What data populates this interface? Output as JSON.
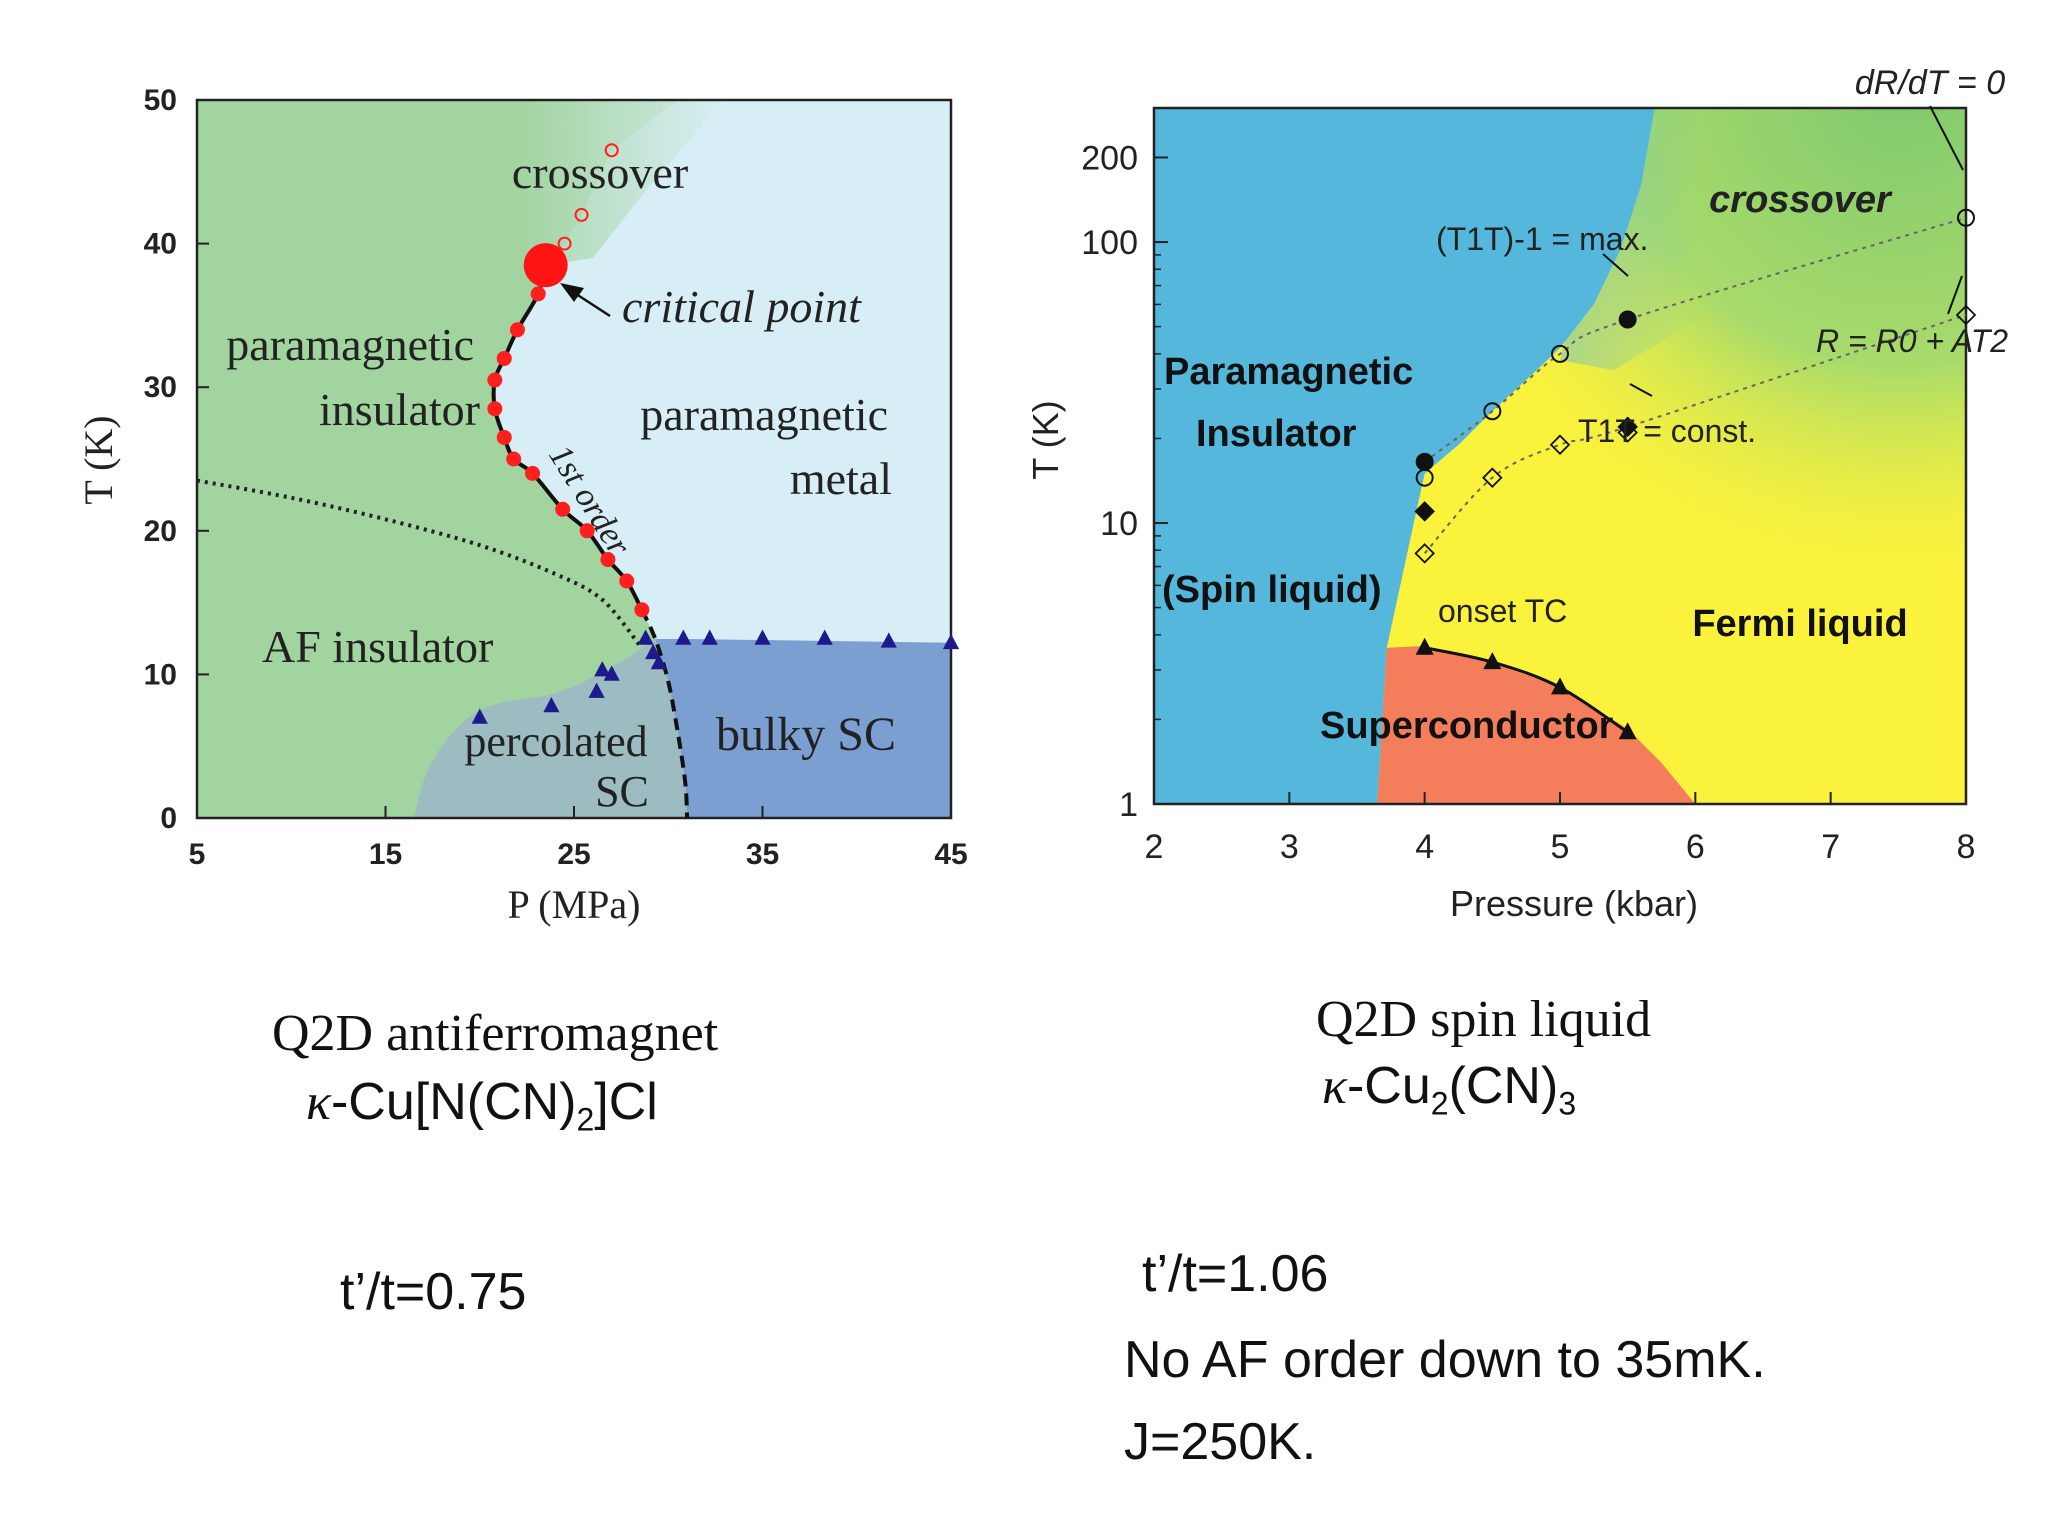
{
  "chart_data": [
    {
      "type": "scatter",
      "title": "",
      "xlabel": "P (MPa)",
      "ylabel": "T (K)",
      "xlim": [
        5,
        45
      ],
      "ylim": [
        0,
        50
      ],
      "xticks": [
        "5",
        "15",
        "25",
        "35",
        "45"
      ],
      "yticks": [
        "0",
        "10",
        "20",
        "30",
        "40",
        "50"
      ],
      "regions": {
        "crossover": "crossover",
        "paramagnetic_insulator_1": "paramagnetic",
        "paramagnetic_insulator_2": "insulator",
        "paramagnetic_metal_1": "paramagnetic",
        "paramagnetic_metal_2": "metal",
        "af_insulator": "AF insulator",
        "percolated_sc_1": "percolated",
        "percolated_sc_2": "SC",
        "bulky_sc": "bulky SC"
      },
      "annotations": {
        "critical_point": "critical point",
        "first_order": "1st order"
      },
      "colors": {
        "insulator": "#a2d4a0",
        "metal": "#d8eef6",
        "percolated": "#9cbcc2",
        "bulky": "#7b9fd0",
        "points": "#ff1f1f",
        "triangles": "#1c1a8c"
      },
      "critical_point": {
        "x": 23.5,
        "y": 38.5
      },
      "first_order_points": [
        {
          "x": 23.1,
          "y": 36.5
        },
        {
          "x": 22.0,
          "y": 34.0
        },
        {
          "x": 21.3,
          "y": 32.0
        },
        {
          "x": 20.8,
          "y": 30.5
        },
        {
          "x": 20.8,
          "y": 28.5
        },
        {
          "x": 21.3,
          "y": 26.5
        },
        {
          "x": 21.8,
          "y": 25.0
        },
        {
          "x": 22.8,
          "y": 24.0
        },
        {
          "x": 24.4,
          "y": 21.5
        },
        {
          "x": 25.7,
          "y": 20.0
        },
        {
          "x": 26.8,
          "y": 18.0
        },
        {
          "x": 27.8,
          "y": 16.5
        },
        {
          "x": 28.6,
          "y": 14.5
        }
      ],
      "crossover_points": [
        {
          "x": 27.0,
          "y": 46.5
        },
        {
          "x": 25.4,
          "y": 42.0
        },
        {
          "x": 24.5,
          "y": 40.0
        }
      ],
      "sc_onset_triangles": [
        {
          "x": 20.0,
          "y": 7.0
        },
        {
          "x": 23.8,
          "y": 7.8
        },
        {
          "x": 26.2,
          "y": 8.8
        },
        {
          "x": 26.5,
          "y": 10.3
        },
        {
          "x": 27.0,
          "y": 10.0
        },
        {
          "x": 28.8,
          "y": 12.5
        },
        {
          "x": 29.2,
          "y": 11.5
        },
        {
          "x": 29.5,
          "y": 10.8
        },
        {
          "x": 30.8,
          "y": 12.5
        },
        {
          "x": 32.2,
          "y": 12.5
        },
        {
          "x": 35.0,
          "y": 12.5
        },
        {
          "x": 38.3,
          "y": 12.5
        },
        {
          "x": 41.7,
          "y": 12.3
        },
        {
          "x": 45.0,
          "y": 12.2
        }
      ],
      "af_boundary": [
        {
          "x": 5,
          "y": 23.5
        },
        {
          "x": 10,
          "y": 22.3
        },
        {
          "x": 15,
          "y": 20.8
        },
        {
          "x": 20,
          "y": 19.0
        },
        {
          "x": 24,
          "y": 17.0
        },
        {
          "x": 26.5,
          "y": 15.2
        },
        {
          "x": 28.5,
          "y": 12.0
        }
      ],
      "sc_boundary": [
        {
          "x": 28.6,
          "y": 14.5
        },
        {
          "x": 29.3,
          "y": 12.5
        },
        {
          "x": 30.0,
          "y": 9.5
        },
        {
          "x": 30.5,
          "y": 6.0
        },
        {
          "x": 30.9,
          "y": 2.5
        },
        {
          "x": 31.0,
          "y": 0
        }
      ]
    },
    {
      "type": "line",
      "title": "",
      "xlabel": "Pressure (kbar)",
      "ylabel": "T (K)",
      "xlim": [
        2,
        8
      ],
      "ylim": [
        1,
        300
      ],
      "yscale": "log",
      "xticks": [
        "2",
        "3",
        "4",
        "5",
        "6",
        "7",
        "8"
      ],
      "yticks": [
        {
          "value": 1,
          "label": "1"
        },
        {
          "value": 10,
          "label": "10"
        },
        {
          "value": 100,
          "label": "100"
        },
        {
          "value": 200,
          "label": "200"
        }
      ],
      "regions": {
        "crossover": "crossover",
        "paramagnetic": "Paramagnetic",
        "insulator": "Insulator",
        "spin_liquid": "(Spin liquid)",
        "fermi_liquid": "Fermi liquid",
        "superconductor": "Superconductor"
      },
      "annotations": {
        "drdt": "dR/dT = 0",
        "t1t_max": "(T1T)-1 = max.",
        "t1t_const": "T1T = const.",
        "resistivity": "R = R0 + AT2",
        "onset_tc": "onset TC"
      },
      "colors": {
        "insulator": "#56b7dc",
        "fermi": "#fbf23c",
        "crossover": "#8fd27a",
        "sc": "#f47d5c"
      },
      "t1t_max_series": [
        {
          "x": 4.0,
          "y": 16.5,
          "filled": true
        },
        {
          "x": 4.0,
          "y": 14.5,
          "filled": false
        },
        {
          "x": 4.5,
          "y": 25,
          "filled": false
        },
        {
          "x": 5.0,
          "y": 40,
          "filled": false
        },
        {
          "x": 5.5,
          "y": 53,
          "filled": true
        },
        {
          "x": 8.0,
          "y": 122,
          "filled": false
        }
      ],
      "t1t_const_series": [
        {
          "x": 4.0,
          "y": 7.8,
          "filled": false
        },
        {
          "x": 4.0,
          "y": 11,
          "filled": true
        },
        {
          "x": 4.5,
          "y": 14.5,
          "filled": false
        },
        {
          "x": 5.0,
          "y": 19,
          "filled": false
        },
        {
          "x": 5.5,
          "y": 22,
          "filled": true
        },
        {
          "x": 5.5,
          "y": 21,
          "filled": false
        },
        {
          "x": 8.0,
          "y": 55,
          "filled": false
        }
      ],
      "tc_onset": [
        {
          "x": 4.0,
          "y": 3.6
        },
        {
          "x": 4.5,
          "y": 3.2
        },
        {
          "x": 5.0,
          "y": 2.6
        },
        {
          "x": 5.5,
          "y": 1.8
        }
      ],
      "insulator_boundary": [
        {
          "x": 3.65,
          "y": 1
        },
        {
          "x": 3.72,
          "y": 3.6
        },
        {
          "x": 3.82,
          "y": 6
        },
        {
          "x": 3.92,
          "y": 10
        },
        {
          "x": 4.0,
          "y": 15
        }
      ]
    }
  ],
  "captions": {
    "left_title": "Q2D antiferromagnet",
    "left_formula_kappa": "κ",
    "left_formula_a": "-Cu[N(CN)",
    "left_formula_sub": "2",
    "left_formula_b": "]Cl",
    "left_ratio": "t’/t=0.75",
    "right_title": "Q2D spin liquid",
    "right_formula_kappa": "κ",
    "right_formula_a": "-Cu",
    "right_formula_sub1": "2",
    "right_formula_b": "(CN)",
    "right_formula_sub2": "3",
    "right_ratio": "t’/t=1.06",
    "right_note1": "No AF order down to 35mK.",
    "right_note2": "J=250K."
  }
}
